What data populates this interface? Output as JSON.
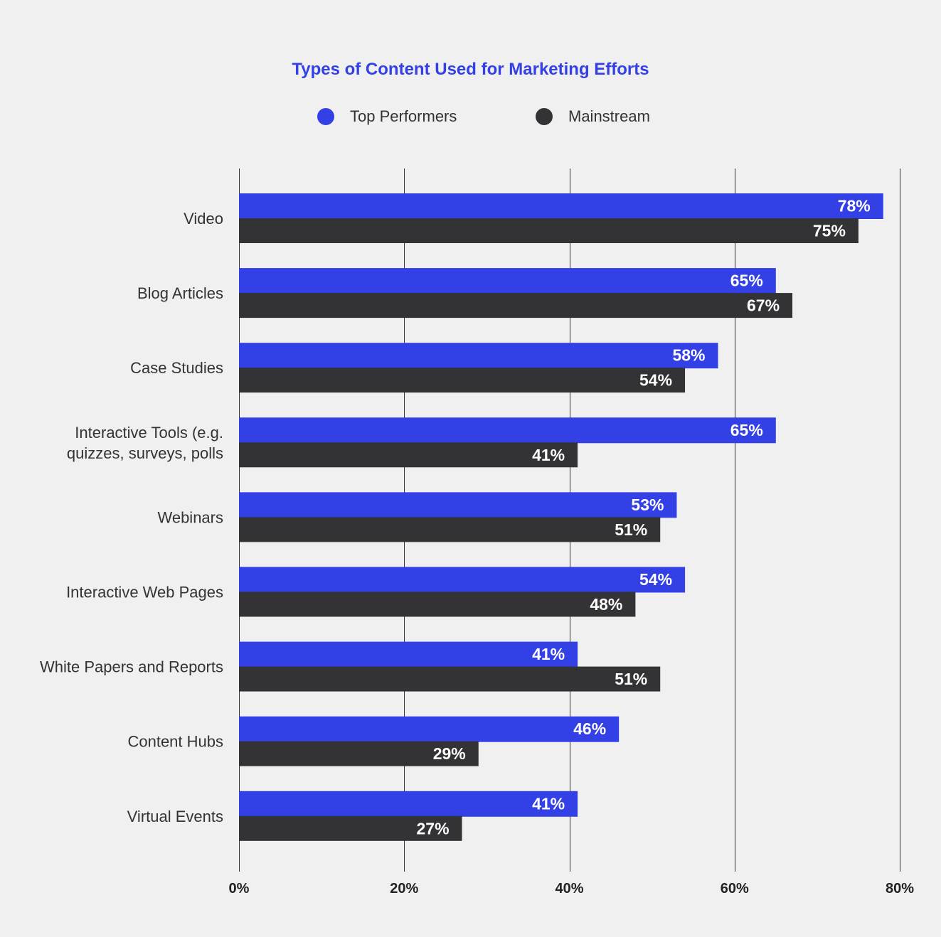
{
  "chart_data": {
    "type": "bar",
    "orientation": "horizontal",
    "title": "Types of Content Used for Marketing Efforts",
    "categories": [
      "Video",
      "Blog Articles",
      "Case Studies",
      "Interactive Tools (e.g.\nquizzes, surveys, polls",
      "Webinars",
      "Interactive Web Pages",
      "White Papers and Reports",
      "Content Hubs",
      "Virtual Events"
    ],
    "series": [
      {
        "name": "Top Performers",
        "color": "#3340e6",
        "values": [
          78,
          65,
          58,
          65,
          53,
          54,
          41,
          46,
          41
        ],
        "labels": [
          "78%",
          "65%",
          "58%",
          "65%",
          "53%",
          "54%",
          "41%",
          "46%",
          "41%"
        ]
      },
      {
        "name": "Mainstream",
        "color": "#333235",
        "values": [
          75,
          67,
          54,
          41,
          51,
          48,
          51,
          29,
          27
        ],
        "labels": [
          "75%",
          "67%",
          "54%",
          "41%",
          "51%",
          "48%",
          "51%",
          "29%",
          "27%"
        ]
      }
    ],
    "xlim": [
      0,
      80
    ],
    "xticks": [
      0,
      20,
      40,
      60,
      80
    ],
    "xtick_labels": [
      "0%",
      "20%",
      "40%",
      "60%",
      "80%"
    ],
    "grid": true,
    "legend_position": "top-center"
  }
}
